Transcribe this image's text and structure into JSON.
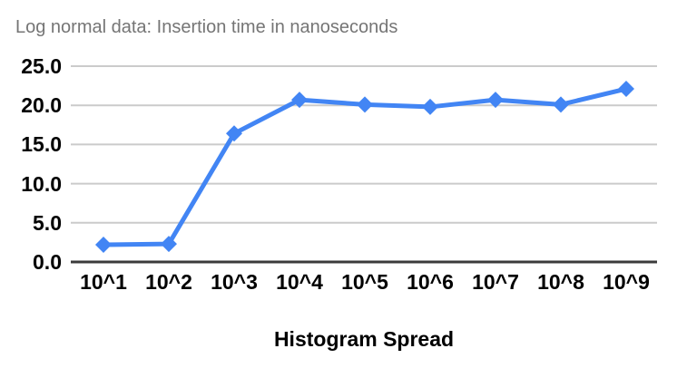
{
  "chart_data": {
    "type": "line",
    "title": "Log normal data: Insertion time in nanoseconds",
    "xlabel": "Histogram Spread",
    "ylabel": "",
    "categories": [
      "10^1",
      "10^2",
      "10^3",
      "10^4",
      "10^5",
      "10^6",
      "10^7",
      "10^8",
      "10^9"
    ],
    "series": [
      {
        "values": [
          2.2,
          2.3,
          16.4,
          20.7,
          20.1,
          19.8,
          20.7,
          20.1,
          22.1
        ],
        "color": "#4285f4",
        "marker": "diamond"
      }
    ],
    "ylim": [
      0,
      25
    ],
    "y_ticks": [
      0,
      5,
      10,
      15,
      20,
      25
    ],
    "y_tick_labels": [
      "0.0",
      "5.0",
      "10.0",
      "15.0",
      "20.0",
      "25.0"
    ],
    "grid": "horizontal",
    "legend": "none",
    "colors": {
      "series": "#4285f4",
      "gridline": "#cbcbcb",
      "axis_line": "#3b3b3b",
      "title_text": "#757575",
      "tick_text": "#000000"
    }
  }
}
